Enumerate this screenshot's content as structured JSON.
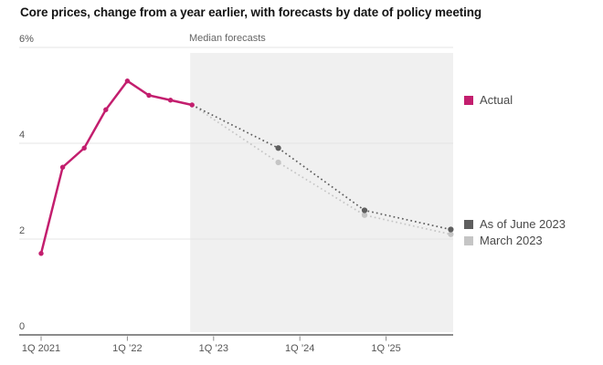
{
  "title": "Core prices, change from a year earlier, with forecasts by date of policy meeting",
  "chart_data": {
    "type": "line",
    "title": "Core prices, change from a year earlier, with forecasts by date of policy meeting",
    "x_unit": "quarter index, 0 = 1Q 2021",
    "ylim": [
      0,
      6
    ],
    "grid": "horizontal",
    "y_tick_labels": [
      "6%",
      "4",
      "2",
      "0"
    ],
    "y_tick_values": [
      6,
      4,
      2,
      0
    ],
    "x_tick_labels": [
      "1Q 2021",
      "1Q ’22",
      "1Q ’23",
      "1Q ’24",
      "1Q ’25"
    ],
    "x_tick_positions": [
      0,
      4,
      8,
      12,
      16
    ],
    "forecast_region": {
      "label": "Median forecasts",
      "start_x": 7,
      "fill": "#f0f0f0"
    },
    "series": [
      {
        "name": "Actual",
        "color": "#c31e6e",
        "style": "solid",
        "markers": "all",
        "quarters": [
          "1Q 2021",
          "2Q 2021",
          "3Q 2021",
          "4Q 2021",
          "1Q 2022",
          "2Q 2022",
          "3Q 2022",
          "4Q 2022"
        ],
        "x": [
          0,
          1,
          2,
          3,
          4,
          5,
          6,
          7
        ],
        "values": [
          1.7,
          3.5,
          3.9,
          4.7,
          5.3,
          5.0,
          4.9,
          4.8
        ]
      },
      {
        "name": "As of June 2023",
        "color": "#5e5e5e",
        "style": "dotted",
        "markers": "skip-first",
        "quarters": [
          "4Q 2022",
          "4Q 2023",
          "4Q 2024",
          "4Q 2025"
        ],
        "x": [
          7,
          11,
          15,
          19
        ],
        "values": [
          4.8,
          3.9,
          2.6,
          2.2
        ]
      },
      {
        "name": "March 2023",
        "color": "#c5c5c5",
        "style": "dotted",
        "markers": "skip-first",
        "quarters": [
          "4Q 2022",
          "4Q 2023",
          "4Q 2024",
          "4Q 2025"
        ],
        "x": [
          7,
          11,
          15,
          19
        ],
        "values": [
          4.8,
          3.6,
          2.5,
          2.1
        ]
      }
    ],
    "legend": [
      {
        "label": "Actual",
        "color": "#c31e6e"
      },
      {
        "label": "As of June 2023",
        "color": "#5e5e5e"
      },
      {
        "label": "March 2023",
        "color": "#c5c5c5"
      }
    ],
    "legend_position": "right"
  }
}
